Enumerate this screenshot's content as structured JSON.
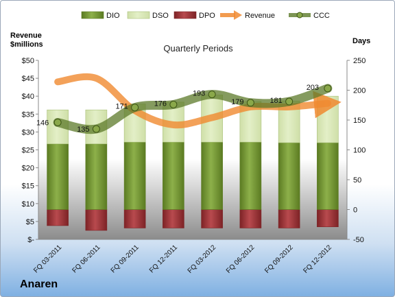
{
  "company": "Anaren",
  "chart_data": {
    "type": "bar",
    "title": "Quarterly Periods",
    "categories": [
      "FQ 03-2011",
      "FQ 06-2011",
      "FQ 09-2011",
      "FQ 12-2011",
      "FQ 03-2012",
      "FQ 06-2012",
      "FQ 09-2012",
      "FQ 12-2012"
    ],
    "left_axis": {
      "label_line1": "Revenue",
      "label_line2": "$millions",
      "ylim": [
        0,
        50
      ],
      "ticks": [
        {
          "value": 50,
          "label": "$50"
        },
        {
          "value": 45,
          "label": "$45"
        },
        {
          "value": 40,
          "label": "$40"
        },
        {
          "value": 35,
          "label": "$35"
        },
        {
          "value": 30,
          "label": "$30"
        },
        {
          "value": 25,
          "label": "$25"
        },
        {
          "value": 20,
          "label": "$20"
        },
        {
          "value": 15,
          "label": "$15"
        },
        {
          "value": 10,
          "label": "$10"
        },
        {
          "value": 5,
          "label": "$5"
        },
        {
          "value": 0,
          "label": "$-"
        }
      ]
    },
    "right_axis": {
      "label": "Days",
      "ylim": [
        -50,
        250
      ],
      "ticks": [
        250,
        200,
        150,
        100,
        50,
        0,
        -50
      ]
    },
    "series": [
      {
        "name": "DIO",
        "type": "stacked-bar",
        "axis": "right",
        "values": [
          110,
          110,
          113,
          113,
          113,
          113,
          112,
          112
        ]
      },
      {
        "name": "DSO",
        "type": "stacked-bar",
        "axis": "right",
        "values": [
          57,
          57,
          64,
          67,
          79,
          68,
          70,
          78
        ]
      },
      {
        "name": "DPO",
        "type": "negative-bar",
        "axis": "right",
        "values": [
          -27,
          -35,
          -31,
          -31,
          -31,
          -31,
          -31,
          -29
        ]
      },
      {
        "name": "Revenue",
        "type": "line",
        "axis": "left",
        "values": [
          44,
          45,
          36,
          32,
          34,
          37,
          37,
          38
        ]
      },
      {
        "name": "CCC",
        "type": "line",
        "axis": "right",
        "values": [
          146,
          135,
          171,
          176,
          193,
          179,
          181,
          203
        ]
      }
    ],
    "ccc_labels": [
      "146",
      "135",
      "171",
      "176",
      "193",
      "179",
      "181",
      "203"
    ],
    "colors": {
      "dio": "#8db04a",
      "dio_dark": "#5b7b22",
      "dso": "#e3efc7",
      "dso_dark": "#a8bf78",
      "dpo": "#b84a4e",
      "dpo_dark": "#7d2326",
      "revenue": "#f08a30",
      "ccc": "#5c7a2a"
    },
    "legend_position": "top",
    "grid": false
  }
}
